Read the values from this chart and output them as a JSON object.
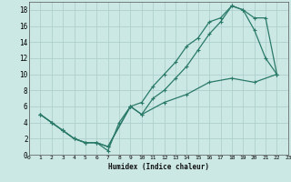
{
  "xlabel": "Humidex (Indice chaleur)",
  "bg_color": "#cce8e4",
  "grid_color": "#aecfcb",
  "line_color": "#2a7a6a",
  "xlim": [
    0,
    23
  ],
  "ylim": [
    0,
    19
  ],
  "xticks": [
    0,
    1,
    2,
    3,
    4,
    5,
    6,
    7,
    8,
    9,
    10,
    11,
    12,
    13,
    14,
    15,
    16,
    17,
    18,
    19,
    20,
    21,
    22,
    23
  ],
  "yticks": [
    0,
    2,
    4,
    6,
    8,
    10,
    12,
    14,
    16,
    18
  ],
  "line1_x": [
    1,
    2,
    3,
    4,
    5,
    6,
    7,
    9,
    10,
    11,
    12,
    13,
    14,
    15,
    16,
    17,
    18,
    19,
    20,
    21,
    22
  ],
  "line1_y": [
    5,
    4,
    3,
    2,
    1.5,
    1.5,
    1,
    6,
    5,
    7,
    8,
    9.5,
    11,
    13,
    15,
    16.5,
    18.5,
    18,
    15.5,
    12,
    10
  ],
  "line2_x": [
    1,
    2,
    3,
    4,
    5,
    6,
    7,
    9,
    10,
    11,
    12,
    13,
    14,
    15,
    16,
    17,
    18,
    19,
    20,
    21,
    22
  ],
  "line2_y": [
    5,
    4,
    3,
    2,
    1.5,
    1.5,
    1,
    6,
    6.5,
    8.5,
    10,
    11.5,
    13.5,
    14.5,
    16.5,
    17,
    18.5,
    18,
    17,
    17,
    10
  ],
  "line3_x": [
    1,
    2,
    3,
    4,
    5,
    6,
    7,
    8,
    9,
    10,
    12,
    14,
    16,
    18,
    20,
    22
  ],
  "line3_y": [
    5,
    4,
    3,
    2,
    1.5,
    1.5,
    0.5,
    4,
    6,
    5,
    6.5,
    7.5,
    9,
    9.5,
    9,
    10
  ]
}
